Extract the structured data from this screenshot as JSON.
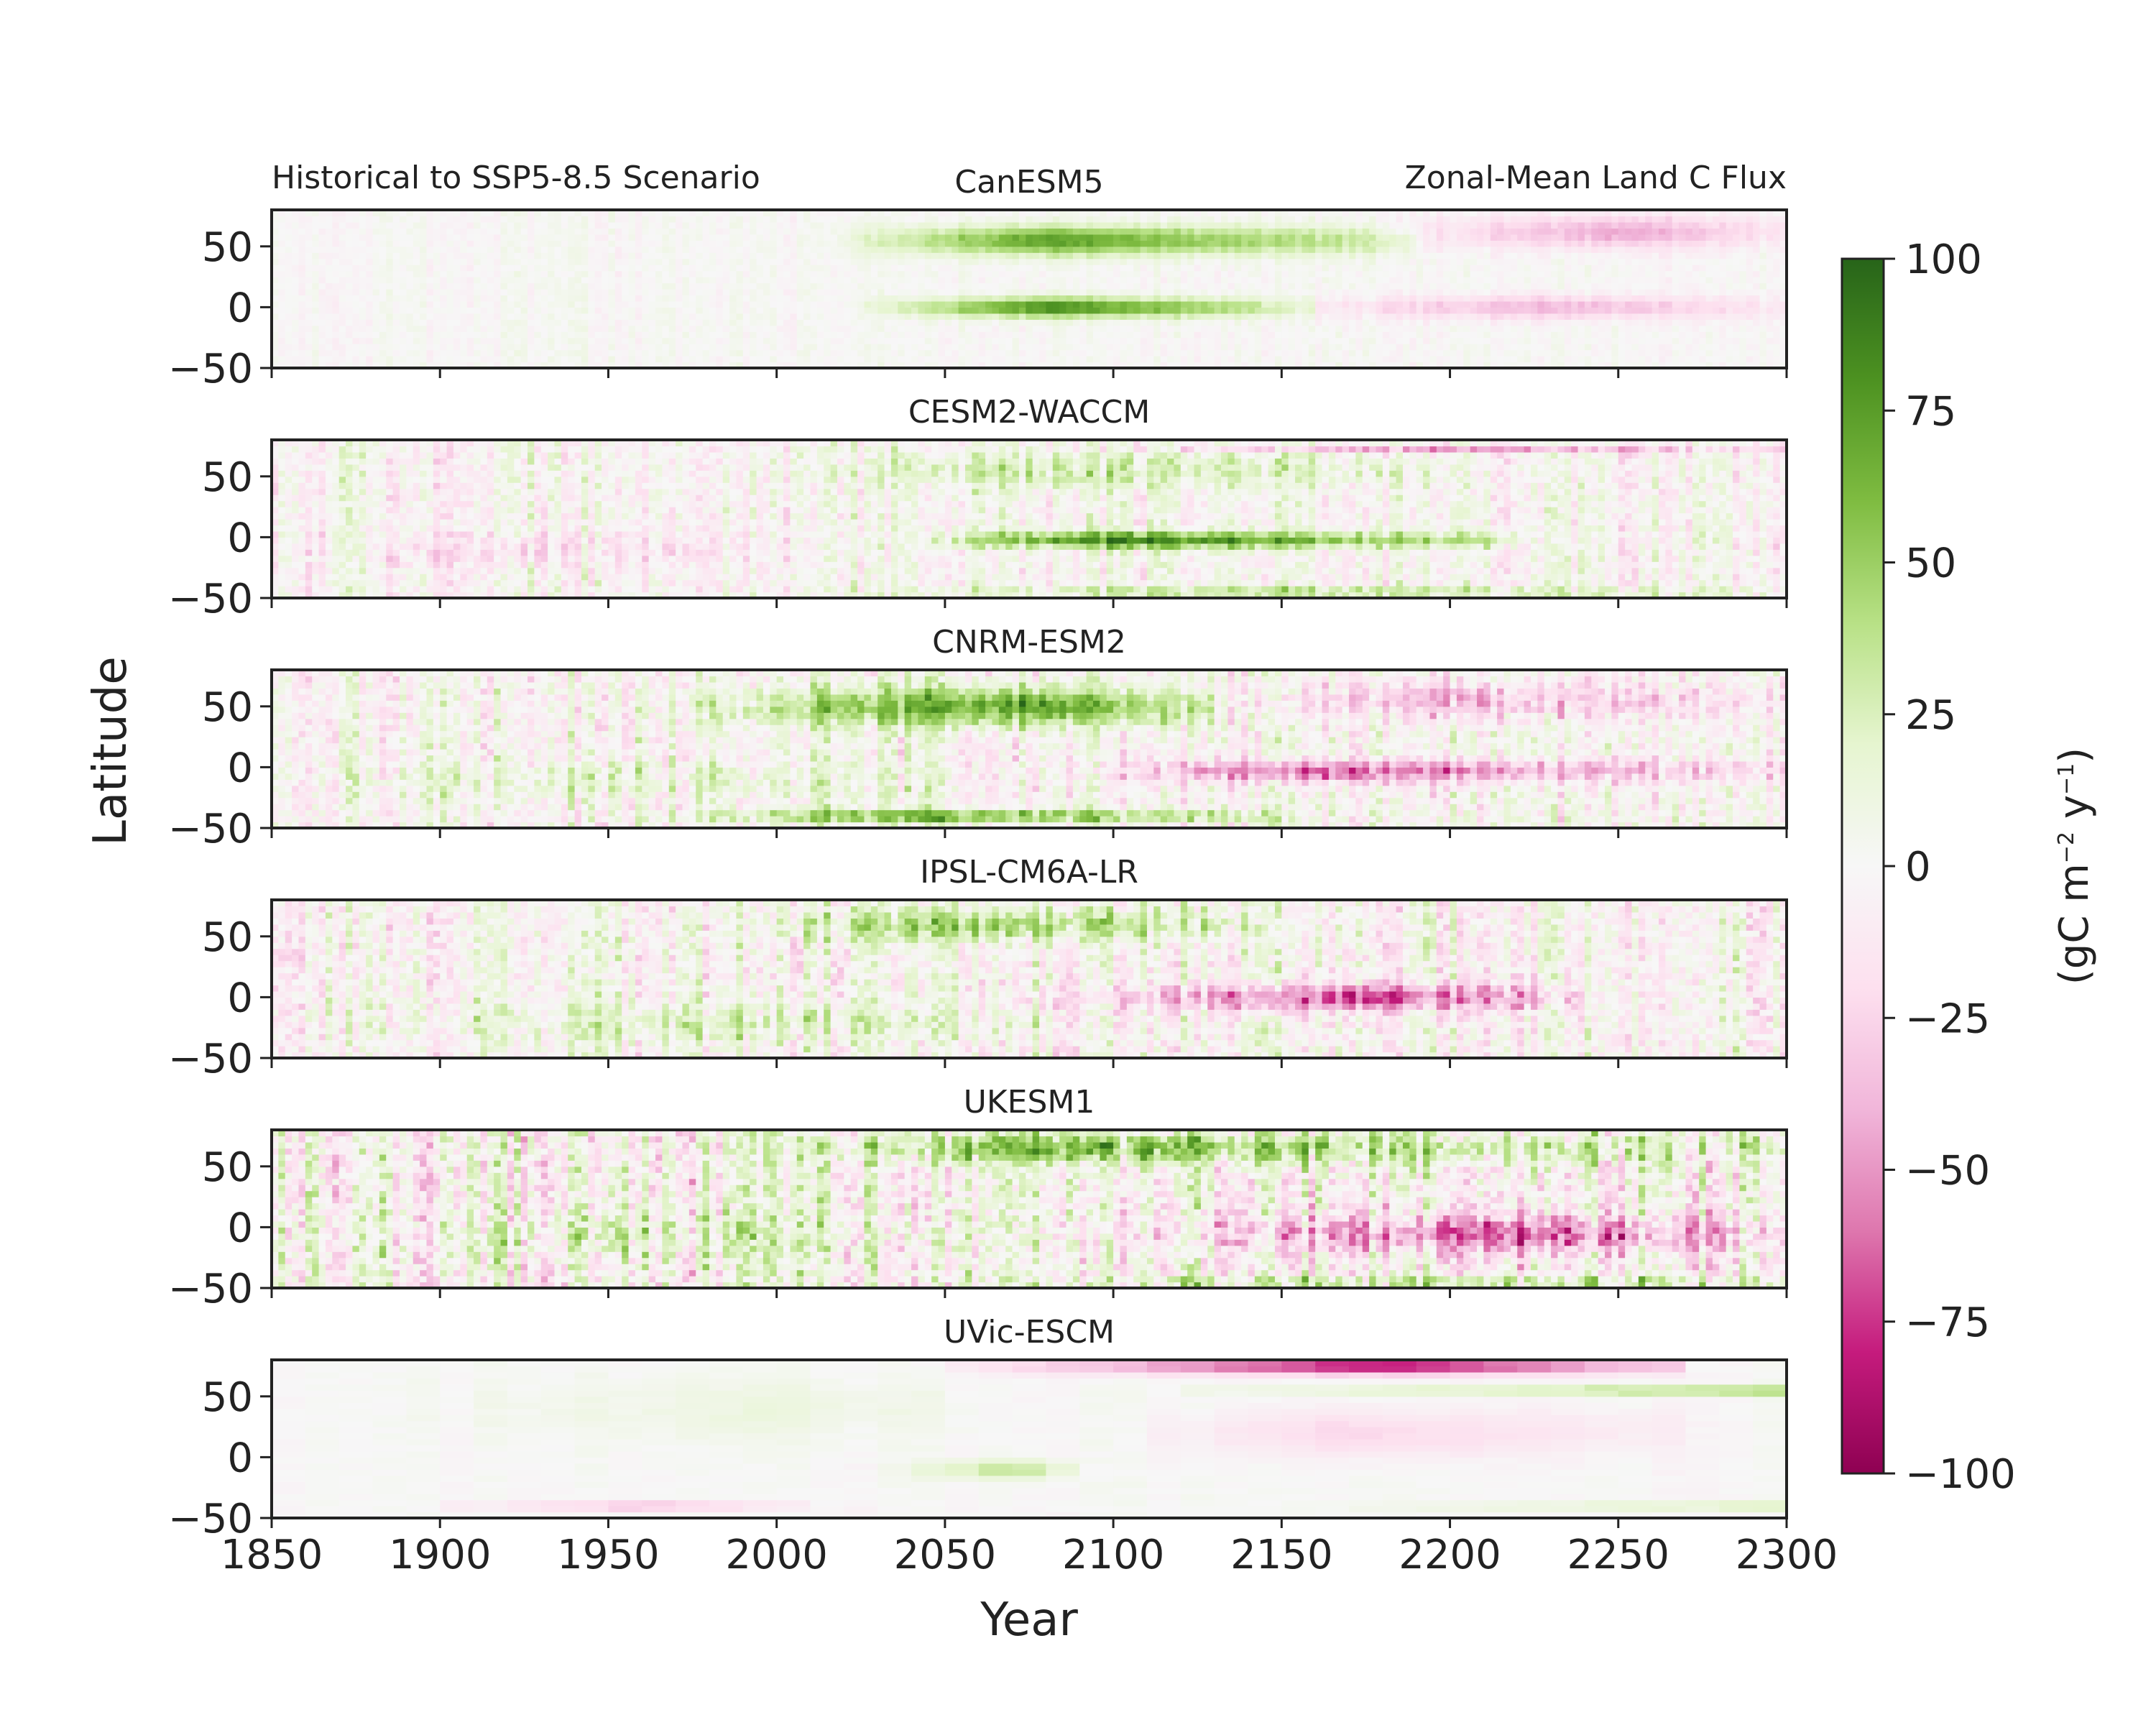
{
  "chart_data": {
    "type": "heatmap",
    "scenario_label": "Historical to SSP5-8.5 Scenario",
    "variable_label": "Zonal-Mean Land C Flux",
    "xlabel": "Year",
    "ylabel": "Latitude",
    "xlim": [
      1850,
      2300
    ],
    "ylim": [
      -50,
      80
    ],
    "x_ticks": [
      1850,
      1900,
      1950,
      2000,
      2050,
      2100,
      2150,
      2200,
      2250,
      2300
    ],
    "x_tick_labels": [
      "1850",
      "1900",
      "1950",
      "2000",
      "2050",
      "2100",
      "2150",
      "2200",
      "2250",
      "2300"
    ],
    "y_ticks": [
      50,
      0,
      -50
    ],
    "y_tick_labels": [
      "50",
      "0",
      "−50"
    ],
    "colorbar": {
      "label": "(gC m⁻² y⁻¹)",
      "label_parts": [
        "(gC m",
        "−2",
        " y",
        "−1",
        ")"
      ],
      "vmin": -100,
      "vmax": 100,
      "ticks": [
        100,
        75,
        50,
        25,
        0,
        -25,
        -50,
        -75,
        -100
      ],
      "tick_labels": [
        "100",
        "75",
        "50",
        "25",
        "0",
        "−25",
        "−50",
        "−75",
        "−100"
      ],
      "colormap": "PiYG",
      "colors": [
        "#8e0152",
        "#c51b7d",
        "#de77ae",
        "#f1b6da",
        "#fde0ef",
        "#f7f7f7",
        "#e6f5d0",
        "#b8e186",
        "#7fbc41",
        "#4d9221",
        "#276419"
      ]
    },
    "panels": [
      {
        "model": "CanESM5",
        "features": [
          {
            "lat": 55,
            "lat_width": 18,
            "start": 2010,
            "peak": 2080,
            "end": 2190,
            "value": 75
          },
          {
            "lat": 62,
            "lat_width": 20,
            "start": 2170,
            "peak": 2250,
            "end": 2300,
            "value": -45
          },
          {
            "lat": 0,
            "lat_width": 12,
            "start": 2020,
            "peak": 2080,
            "end": 2160,
            "value": 85
          },
          {
            "lat": 0,
            "lat_width": 14,
            "start": 2130,
            "peak": 2230,
            "end": 2300,
            "value": -40
          }
        ],
        "noise": 8
      },
      {
        "model": "CESM2-WACCM",
        "features": [
          {
            "lat": 55,
            "lat_width": 22,
            "start": 1990,
            "peak": 2080,
            "end": 2200,
            "value": 30
          },
          {
            "lat": 73,
            "lat_width": 4,
            "start": 2080,
            "peak": 2200,
            "end": 2300,
            "value": -50
          },
          {
            "lat": -2,
            "lat_width": 10,
            "start": 2030,
            "peak": 2100,
            "end": 2220,
            "value": 90
          },
          {
            "lat": -45,
            "lat_width": 6,
            "start": 2000,
            "peak": 2150,
            "end": 2300,
            "value": 45
          },
          {
            "lat": -10,
            "lat_width": 20,
            "start": 1850,
            "peak": 1930,
            "end": 2010,
            "value": -18
          }
        ],
        "noise": 25
      },
      {
        "model": "CNRM-ESM2",
        "features": [
          {
            "lat": 50,
            "lat_width": 24,
            "start": 1950,
            "peak": 2070,
            "end": 2130,
            "value": 80
          },
          {
            "lat": 55,
            "lat_width": 24,
            "start": 2130,
            "peak": 2200,
            "end": 2300,
            "value": -40
          },
          {
            "lat": -3,
            "lat_width": 14,
            "start": 2080,
            "peak": 2160,
            "end": 2300,
            "value": -65
          },
          {
            "lat": -40,
            "lat_width": 8,
            "start": 1950,
            "peak": 2050,
            "end": 2150,
            "value": 75
          },
          {
            "lat": -10,
            "lat_width": 24,
            "start": 1850,
            "peak": 1950,
            "end": 2060,
            "value": 20
          }
        ],
        "noise": 28
      },
      {
        "model": "IPSL-CM6A-LR",
        "features": [
          {
            "lat": 60,
            "lat_width": 20,
            "start": 1980,
            "peak": 2060,
            "end": 2140,
            "value": 55
          },
          {
            "lat": 0,
            "lat_width": 16,
            "start": 2070,
            "peak": 2170,
            "end": 2240,
            "value": -70
          },
          {
            "lat": -20,
            "lat_width": 24,
            "start": 1850,
            "peak": 1990,
            "end": 2080,
            "value": 25
          }
        ],
        "noise": 30
      },
      {
        "model": "UKESM1",
        "features": [
          {
            "lat": 65,
            "lat_width": 18,
            "start": 1990,
            "peak": 2080,
            "end": 2300,
            "value": 60
          },
          {
            "lat": -5,
            "lat_width": 22,
            "start": 2080,
            "peak": 2220,
            "end": 2300,
            "value": -60
          },
          {
            "lat": -45,
            "lat_width": 6,
            "start": 2030,
            "peak": 2200,
            "end": 2300,
            "value": 50
          },
          {
            "lat": -5,
            "lat_width": 24,
            "start": 1850,
            "peak": 1950,
            "end": 2060,
            "value": 20
          }
        ],
        "noise": 40
      },
      {
        "model": "UVic-ESCM",
        "features": [
          {
            "lat": 75,
            "lat_width": 10,
            "start": 2040,
            "peak": 2180,
            "end": 2270,
            "value": -95
          },
          {
            "lat": 55,
            "lat_width": 5,
            "start": 2100,
            "peak": 2300,
            "end": 2300,
            "value": 60
          },
          {
            "lat": 20,
            "lat_width": 30,
            "start": 2100,
            "peak": 2170,
            "end": 2270,
            "value": -25
          },
          {
            "lat": -10,
            "lat_width": 12,
            "start": 2030,
            "peak": 2070,
            "end": 2090,
            "value": 40
          },
          {
            "lat": -40,
            "lat_width": 4,
            "start": 1890,
            "peak": 1960,
            "end": 2010,
            "value": -60
          },
          {
            "lat": -40,
            "lat_width": 4,
            "start": 2150,
            "peak": 2300,
            "end": 2300,
            "value": 45
          },
          {
            "lat": 40,
            "lat_width": 40,
            "start": 1880,
            "peak": 2000,
            "end": 2060,
            "value": 12
          }
        ],
        "noise": 4
      }
    ]
  }
}
